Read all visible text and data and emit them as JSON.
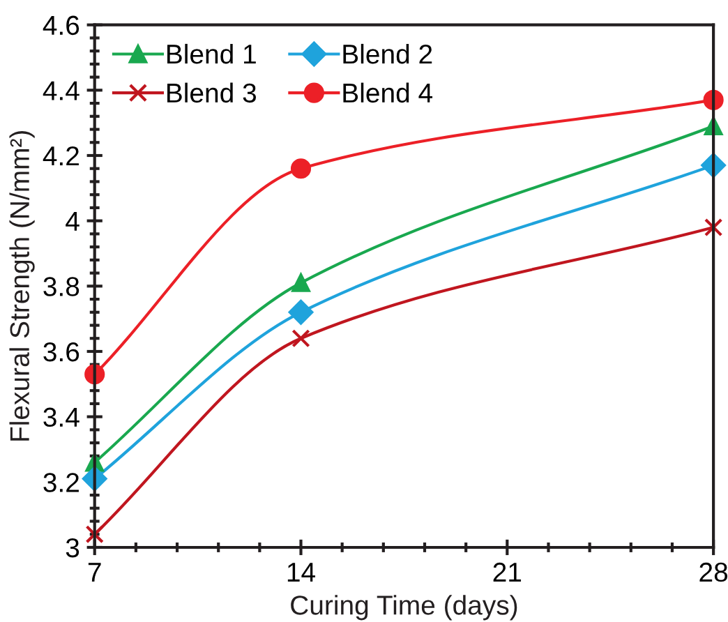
{
  "chart_data": {
    "type": "line",
    "xlabel": "Curing Time (days)",
    "ylabel": "Flexural Strength (N/mm²)",
    "x": [
      7,
      14,
      28
    ],
    "series": [
      {
        "name": "Blend 1",
        "color": "#19a84f",
        "marker": "triangle",
        "values": [
          3.26,
          3.81,
          4.29
        ]
      },
      {
        "name": "Blend 2",
        "color": "#1fa3dc",
        "marker": "diamond",
        "values": [
          3.21,
          3.72,
          4.17
        ]
      },
      {
        "name": "Blend 3",
        "color": "#c0161f",
        "marker": "cross",
        "values": [
          3.04,
          3.64,
          3.98
        ]
      },
      {
        "name": "Blend 4",
        "color": "#ec2027",
        "marker": "circle",
        "values": [
          3.53,
          4.16,
          4.37
        ]
      }
    ],
    "xlim": [
      7,
      28
    ],
    "xticks": [
      7,
      14,
      21,
      28
    ],
    "ylim": [
      3,
      4.6
    ],
    "yticks": [
      3,
      {
        "value": 3.2,
        "label": "3.2"
      },
      {
        "value": 3.4,
        "label": "3.4"
      },
      {
        "value": 3.6,
        "label": "3.6"
      },
      {
        "value": 3.8,
        "label": "3.8"
      },
      4,
      {
        "value": 4.2,
        "label": "4.2"
      },
      {
        "value": 4.4,
        "label": "4.4"
      },
      {
        "value": 4.6,
        "label": "4.6"
      }
    ],
    "grid": false,
    "legend": "top left",
    "line_style": "solid"
  }
}
